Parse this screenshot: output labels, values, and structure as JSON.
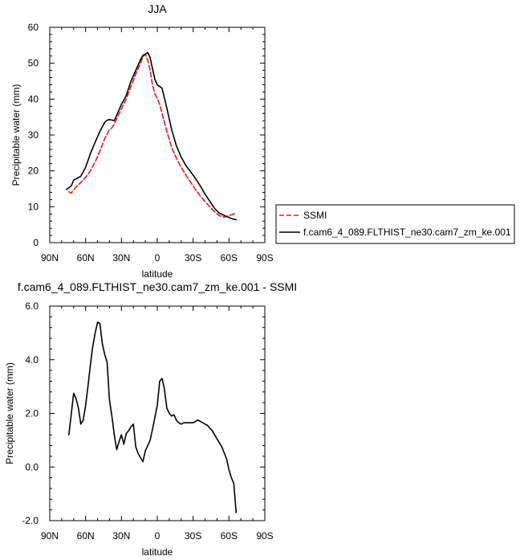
{
  "chart_data": [
    {
      "type": "line",
      "title": "JJA",
      "xlabel": "latitude",
      "ylabel": "Precipitable water (mm)",
      "xlim": [
        90,
        -90
      ],
      "ylim": [
        0,
        60
      ],
      "x_ticks": [
        90,
        60,
        30,
        0,
        -30,
        -60,
        -90
      ],
      "x_tick_labels": [
        "90N",
        "60N",
        "30N",
        "0",
        "30S",
        "60S",
        "90S"
      ],
      "y_ticks": [
        0,
        10,
        20,
        30,
        40,
        50,
        60
      ],
      "y_tick_labels": [
        "0",
        "10",
        "20",
        "30",
        "40",
        "50",
        "60"
      ],
      "legend_position": "right",
      "series": [
        {
          "name": "SSMI",
          "color": "#e8141c",
          "dash": "dashed",
          "x": [
            74,
            72,
            68,
            64,
            60,
            56,
            52,
            48,
            44,
            40,
            38,
            36,
            34,
            30,
            26,
            22,
            18,
            14,
            12,
            10,
            8,
            6,
            4,
            2,
            0,
            -2,
            -4,
            -8,
            -12,
            -16,
            -20,
            -24,
            -28,
            -32,
            -36,
            -40,
            -44,
            -48,
            -52,
            -56,
            -60,
            -64,
            -66
          ],
          "y": [
            14.2,
            13.8,
            15.5,
            16.8,
            18.2,
            20.0,
            22.5,
            25.5,
            29.0,
            31.5,
            32.0,
            33.0,
            34.5,
            37.2,
            40.0,
            43.5,
            47.0,
            50.0,
            51.8,
            52.5,
            50.8,
            48.0,
            44.0,
            41.5,
            40.2,
            38.5,
            36.0,
            31.0,
            26.5,
            23.5,
            21.0,
            18.8,
            16.8,
            14.8,
            13.0,
            11.4,
            10.0,
            8.6,
            7.5,
            7.1,
            7.5,
            8.0,
            8.2
          ]
        },
        {
          "name": "f.cam6_4_089.FLTHIST_ne30.cam7_zm_ke.001",
          "color": "#000000",
          "dash": "solid",
          "x": [
            76,
            72,
            70,
            68,
            64,
            60,
            56,
            52,
            48,
            44,
            42,
            40,
            36,
            34,
            30,
            26,
            22,
            18,
            14,
            12,
            10,
            8,
            6,
            4,
            2,
            0,
            -2,
            -4,
            -8,
            -12,
            -16,
            -20,
            -24,
            -28,
            -32,
            -36,
            -40,
            -44,
            -48,
            -52,
            -56,
            -60,
            -64,
            -66
          ],
          "y": [
            14.8,
            15.8,
            17.4,
            17.8,
            18.5,
            21.0,
            24.8,
            28.0,
            31.0,
            33.5,
            34.1,
            34.3,
            34.0,
            35.5,
            38.5,
            41.0,
            45.0,
            48.0,
            51.0,
            52.2,
            52.5,
            53.0,
            51.5,
            48.5,
            45.5,
            44.0,
            43.5,
            43.0,
            37.5,
            31.5,
            27.0,
            23.8,
            21.5,
            19.7,
            17.9,
            15.8,
            13.5,
            11.5,
            9.5,
            8.2,
            7.6,
            7.0,
            6.5,
            6.4
          ]
        }
      ]
    },
    {
      "type": "line",
      "title": "f.cam6_4_089.FLTHIST_ne30.cam7_zm_ke.001 - SSMI",
      "xlabel": "latitude",
      "ylabel": "Precipitable water (mm)",
      "xlim": [
        90,
        -90
      ],
      "ylim": [
        -2,
        6
      ],
      "x_ticks": [
        90,
        60,
        30,
        0,
        -30,
        -60,
        -90
      ],
      "x_tick_labels": [
        "90N",
        "60N",
        "30N",
        "0",
        "30S",
        "60S",
        "90S"
      ],
      "y_ticks": [
        -2,
        0,
        2,
        4,
        6
      ],
      "y_tick_labels": [
        "-2.0",
        "0.0",
        "2.0",
        "4.0",
        "6.0"
      ],
      "series": [
        {
          "color": "#000000",
          "dash": "solid",
          "x": [
            74,
            70,
            68,
            66,
            64,
            62,
            60,
            58,
            56,
            54,
            52,
            50,
            48,
            46,
            44,
            42,
            40,
            38,
            36,
            34,
            32,
            30,
            28,
            26,
            24,
            22,
            20,
            18,
            16,
            14,
            12,
            10,
            8,
            6,
            4,
            2,
            0,
            -2,
            -4,
            -6,
            -8,
            -10,
            -12,
            -14,
            -16,
            -18,
            -20,
            -22,
            -24,
            -26,
            -30,
            -34,
            -38,
            -42,
            -46,
            -50,
            -54,
            -58,
            -60,
            -62,
            -64,
            -66
          ],
          "y": [
            1.2,
            2.75,
            2.55,
            2.2,
            1.6,
            1.75,
            2.3,
            3.0,
            3.8,
            4.5,
            5.0,
            5.4,
            5.35,
            4.6,
            4.2,
            3.9,
            2.5,
            1.9,
            1.2,
            0.65,
            0.95,
            1.2,
            0.85,
            1.25,
            1.35,
            1.5,
            1.6,
            0.75,
            0.5,
            0.35,
            0.2,
            0.6,
            0.8,
            1.0,
            1.4,
            1.85,
            2.3,
            3.2,
            3.3,
            2.9,
            2.2,
            2.0,
            1.9,
            1.95,
            1.75,
            1.65,
            1.6,
            1.65,
            1.65,
            1.65,
            1.65,
            1.75,
            1.65,
            1.55,
            1.35,
            1.05,
            0.75,
            0.3,
            -0.1,
            -0.4,
            -0.6,
            -1.7
          ]
        }
      ]
    }
  ]
}
